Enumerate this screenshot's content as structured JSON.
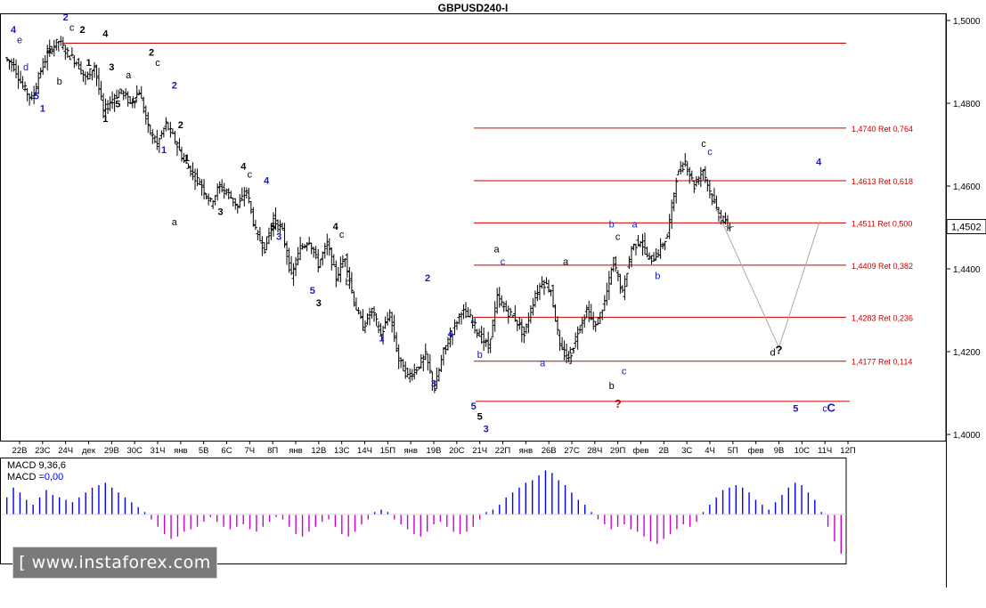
{
  "window": {
    "title": "GBPUSD240-I",
    "watermark": "[ www.instaforex.com ]"
  },
  "colors": {
    "candle": "#000000",
    "fib_line": "#cc0000",
    "fib_label": "#cc0000",
    "wave_blue": "#1a1ab8",
    "wave_black": "#000000",
    "question_red": "#cc0000",
    "macd_up": "#0000ff",
    "macd_down": "#cc00cc",
    "forecast": "#aaaaaa",
    "axis": "#000000"
  },
  "chart_data": [
    {
      "type": "candlestick",
      "title": "GBPUSD240-I",
      "ylim": [
        1.3985,
        1.5015
      ],
      "y_ticks": [
        "1,4000",
        "1,4200",
        "1,4400",
        "1,4600",
        "1,4800",
        "1,5000"
      ],
      "y_tick_values": [
        1.4,
        1.42,
        1.44,
        1.46,
        1.48,
        1.5
      ],
      "current_price_label": "1,4502",
      "current_price": 1.4502,
      "x_ticks": [
        "22В",
        "23С",
        "24Ч",
        "дек",
        "29В",
        "30С",
        "31Ч",
        "янв",
        "5В",
        "6С",
        "7Ч",
        "8П",
        "янв",
        "12В",
        "13С",
        "14Ч",
        "15П",
        "янв",
        "19В",
        "20С",
        "21Ч",
        "22П",
        "янв",
        "26В",
        "27С",
        "28Ч",
        "29П",
        "фев",
        "2В",
        "3С",
        "4Ч",
        "5П",
        "фев",
        "9В",
        "10С",
        "11Ч",
        "12П"
      ],
      "price_path": [
        1.491,
        1.489,
        1.484,
        1.481,
        1.488,
        1.493,
        1.495,
        1.492,
        1.49,
        1.486,
        1.489,
        1.478,
        1.481,
        1.483,
        1.48,
        1.483,
        1.474,
        1.47,
        1.475,
        1.471,
        1.466,
        1.463,
        1.46,
        1.456,
        1.46,
        1.458,
        1.455,
        1.459,
        1.449,
        1.445,
        1.452,
        1.449,
        1.438,
        1.445,
        1.447,
        1.441,
        1.446,
        1.438,
        1.443,
        1.432,
        1.426,
        1.43,
        1.424,
        1.429,
        1.418,
        1.414,
        1.416,
        1.419,
        1.411,
        1.42,
        1.425,
        1.43,
        1.428,
        1.424,
        1.421,
        1.433,
        1.43,
        1.428,
        1.424,
        1.432,
        1.437,
        1.435,
        1.421,
        1.418,
        1.425,
        1.43,
        1.426,
        1.432,
        1.442,
        1.434,
        1.445,
        1.447,
        1.442,
        1.444,
        1.448,
        1.462,
        1.466,
        1.46,
        1.464,
        1.457,
        1.452,
        1.4502
      ],
      "fib_levels": [
        {
          "label": "1,4740 Ret 0,764",
          "value": 1.474
        },
        {
          "label": "1,4613 Ret 0,618",
          "value": 1.4613
        },
        {
          "label": "1,4511 Ret 0,500",
          "value": 1.4511
        },
        {
          "label": "1,4409 Ret 0,382",
          "value": 1.4409
        },
        {
          "label": "1,4283 Ret 0,236",
          "value": 1.4283
        },
        {
          "label": "1,4177 Ret 0,114",
          "value": 1.4177
        }
      ],
      "horizontal_levels": [
        1.4945,
        1.408
      ],
      "forecast_path": [
        {
          "x_label": "5П",
          "y": 1.455
        },
        {
          "x_label": "9В",
          "y": 1.421
        },
        {
          "x_label": "10С",
          "y": 1.4515
        }
      ],
      "wave_labels": [
        {
          "text": "4",
          "color": "blue",
          "at": "22В",
          "y": 1.497
        },
        {
          "text": "e",
          "color": "blue",
          "at": "22В",
          "y": 1.4945
        },
        {
          "text": "d",
          "color": "blue",
          "at": "22В",
          "y": 1.488
        },
        {
          "text": "5",
          "color": "blue",
          "at": "23С",
          "y": 1.481
        },
        {
          "text": "1",
          "color": "blue",
          "at": "23С",
          "y": 1.478
        },
        {
          "text": "a",
          "color": "black",
          "at": "23С",
          "y": 1.492
        },
        {
          "text": "b",
          "color": "black",
          "at": "24Ч",
          "y": 1.4845
        },
        {
          "text": "2",
          "color": "blue",
          "at": "24Ч",
          "y": 1.5
        },
        {
          "text": "c",
          "color": "black",
          "at": "24Ч",
          "y": 1.4975
        },
        {
          "text": "2",
          "color": "black",
          "at": "дек",
          "y": 1.497
        },
        {
          "text": "1",
          "color": "black",
          "at": "дек",
          "y": 1.489
        },
        {
          "text": "4",
          "color": "black",
          "at": "29В",
          "y": 1.496
        },
        {
          "text": "3",
          "color": "black",
          "at": "29В",
          "y": 1.488
        },
        {
          "text": "2",
          "color": "black",
          "at": "31Ч",
          "y": 1.4915
        },
        {
          "text": "c",
          "color": "black",
          "at": "31Ч",
          "y": 1.489
        },
        {
          "text": "a",
          "color": "black",
          "at": "30С",
          "y": 1.486
        },
        {
          "text": "b",
          "color": "black",
          "at": "30С",
          "y": 1.48
        },
        {
          "text": "5",
          "color": "black",
          "at": "29В",
          "y": 1.479
        },
        {
          "text": "1",
          "color": "black",
          "at": "29В",
          "y": 1.4755
        },
        {
          "text": "2",
          "color": "blue",
          "at": "янв",
          "y": 1.4835
        },
        {
          "text": "2",
          "color": "black",
          "at": "янв",
          "y": 1.474
        },
        {
          "text": "1",
          "color": "blue",
          "at": "31Ч",
          "y": 1.468
        },
        {
          "text": "1",
          "color": "black",
          "at": "янв",
          "y": 1.466
        },
        {
          "text": "4",
          "color": "black",
          "at": "7Ч",
          "y": 1.464
        },
        {
          "text": "c",
          "color": "black",
          "at": "7Ч",
          "y": 1.462
        },
        {
          "text": "3",
          "color": "black",
          "at": "6С",
          "y": 1.453
        },
        {
          "text": "4",
          "color": "blue",
          "at": "8П",
          "y": 1.4605
        },
        {
          "text": "5",
          "color": "black",
          "at": "8П",
          "y": 1.4495
        },
        {
          "text": "3",
          "color": "blue",
          "at": "8П",
          "y": 1.447
        },
        {
          "text": "a",
          "color": "black",
          "at": "янв",
          "y": 1.4505
        },
        {
          "text": "4",
          "color": "black",
          "at": "13С",
          "y": 1.4495
        },
        {
          "text": "c",
          "color": "black",
          "at": "13С",
          "y": 1.4475
        },
        {
          "text": "b",
          "color": "black",
          "at": "13С",
          "y": 1.436
        },
        {
          "text": "5",
          "color": "blue",
          "at": "12В",
          "y": 1.434
        },
        {
          "text": "3",
          "color": "black",
          "at": "12В",
          "y": 1.431
        },
        {
          "text": "2",
          "color": "blue",
          "at": "19В",
          "y": 1.437
        },
        {
          "text": "1",
          "color": "blue",
          "at": "15П",
          "y": 1.4225
        },
        {
          "text": "4",
          "color": "blue",
          "at": "20С",
          "y": 1.4235
        },
        {
          "text": "3",
          "color": "blue",
          "at": "19В",
          "y": 1.4115
        },
        {
          "text": "5",
          "color": "blue",
          "at": "21Ч",
          "y": 1.406
        },
        {
          "text": "5",
          "color": "black",
          "at": "21Ч",
          "y": 1.4035
        },
        {
          "text": "3",
          "color": "blue",
          "at": "21Ч",
          "y": 1.4005
        },
        {
          "text": "a",
          "color": "blue",
          "at": "21Ч",
          "y": 1.427
        },
        {
          "text": "b",
          "color": "blue",
          "at": "21Ч",
          "y": 1.4185
        },
        {
          "text": "a",
          "color": "black",
          "at": "22П",
          "y": 1.444
        },
        {
          "text": "c",
          "color": "blue",
          "at": "22П",
          "y": 1.441
        },
        {
          "text": "a",
          "color": "black",
          "at": "27С",
          "y": 1.441
        },
        {
          "text": "a",
          "color": "blue",
          "at": "26В",
          "y": 1.4165
        },
        {
          "text": "b",
          "color": "black",
          "at": "27С",
          "y": 1.4195
        },
        {
          "text": "b",
          "color": "blue",
          "at": "29П",
          "y": 1.45
        },
        {
          "text": "c",
          "color": "black",
          "at": "29П",
          "y": 1.447
        },
        {
          "text": "c",
          "color": "blue",
          "at": "29П",
          "y": 1.4145
        },
        {
          "text": "b",
          "color": "black",
          "at": "29П",
          "y": 1.411
        },
        {
          "text": "?",
          "color": "red",
          "at": "29П",
          "y": 1.4065
        },
        {
          "text": "a",
          "color": "blue",
          "at": "фев",
          "y": 1.45
        },
        {
          "text": "b",
          "color": "blue",
          "at": "2В",
          "y": 1.4375
        },
        {
          "text": "c",
          "color": "black",
          "at": "4Ч",
          "y": 1.4695
        },
        {
          "text": "c",
          "color": "blue",
          "at": "4Ч",
          "y": 1.4675
        },
        {
          "text": "4",
          "color": "blue",
          "at": "11Ч",
          "y": 1.465
        },
        {
          "text": "d",
          "color": "black",
          "at": "9В",
          "y": 1.419
        },
        {
          "text": "?",
          "color": "black",
          "at": "9В",
          "y": 1.4195
        },
        {
          "text": "5",
          "color": "blue",
          "at": "10С",
          "y": 1.4055
        },
        {
          "text": "c",
          "color": "blue",
          "at": "11Ч",
          "y": 1.4055
        },
        {
          "text": "C",
          "color": "blue",
          "at": "11Ч",
          "y": 1.4055
        }
      ]
    },
    {
      "type": "bar",
      "title": "MACD 9,36,6",
      "indicator_label": "MACD 9,36,6",
      "value_prefix": "MACD =",
      "value_text": "0,00",
      "baseline": 0,
      "ylim": [
        -1,
        1
      ],
      "values": [
        0.35,
        0.55,
        0.45,
        0.3,
        0.2,
        0.35,
        0.5,
        0.4,
        0.35,
        0.3,
        0.25,
        0.35,
        0.45,
        0.55,
        0.6,
        0.65,
        0.55,
        0.45,
        0.35,
        0.25,
        0.15,
        0.05,
        -0.1,
        -0.25,
        -0.4,
        -0.5,
        -0.45,
        -0.35,
        -0.3,
        -0.25,
        -0.15,
        -0.05,
        -0.15,
        -0.25,
        -0.3,
        -0.25,
        -0.2,
        -0.3,
        -0.35,
        -0.25,
        -0.15,
        -0.05,
        -0.1,
        -0.25,
        -0.4,
        -0.45,
        -0.35,
        -0.25,
        -0.15,
        -0.1,
        -0.25,
        -0.4,
        -0.45,
        -0.35,
        -0.2,
        -0.1,
        0.05,
        0.1,
        0.05,
        -0.1,
        -0.2,
        -0.3,
        -0.4,
        -0.45,
        -0.35,
        -0.2,
        -0.15,
        -0.25,
        -0.35,
        -0.4,
        -0.35,
        -0.25,
        -0.1,
        0.05,
        0.1,
        0.2,
        0.35,
        0.45,
        0.55,
        0.65,
        0.7,
        0.8,
        0.9,
        0.85,
        0.7,
        0.6,
        0.45,
        0.3,
        0.2,
        0.05,
        -0.1,
        -0.2,
        -0.3,
        -0.25,
        -0.2,
        -0.3,
        -0.35,
        -0.45,
        -0.55,
        -0.6,
        -0.5,
        -0.4,
        -0.3,
        -0.2,
        -0.25,
        -0.15,
        0.05,
        0.2,
        0.35,
        0.5,
        0.55,
        0.6,
        0.55,
        0.45,
        0.3,
        0.2,
        0.1,
        0.25,
        0.4,
        0.55,
        0.65,
        0.6,
        0.45,
        0.3,
        0.05,
        -0.25,
        -0.55,
        -0.8
      ]
    }
  ]
}
